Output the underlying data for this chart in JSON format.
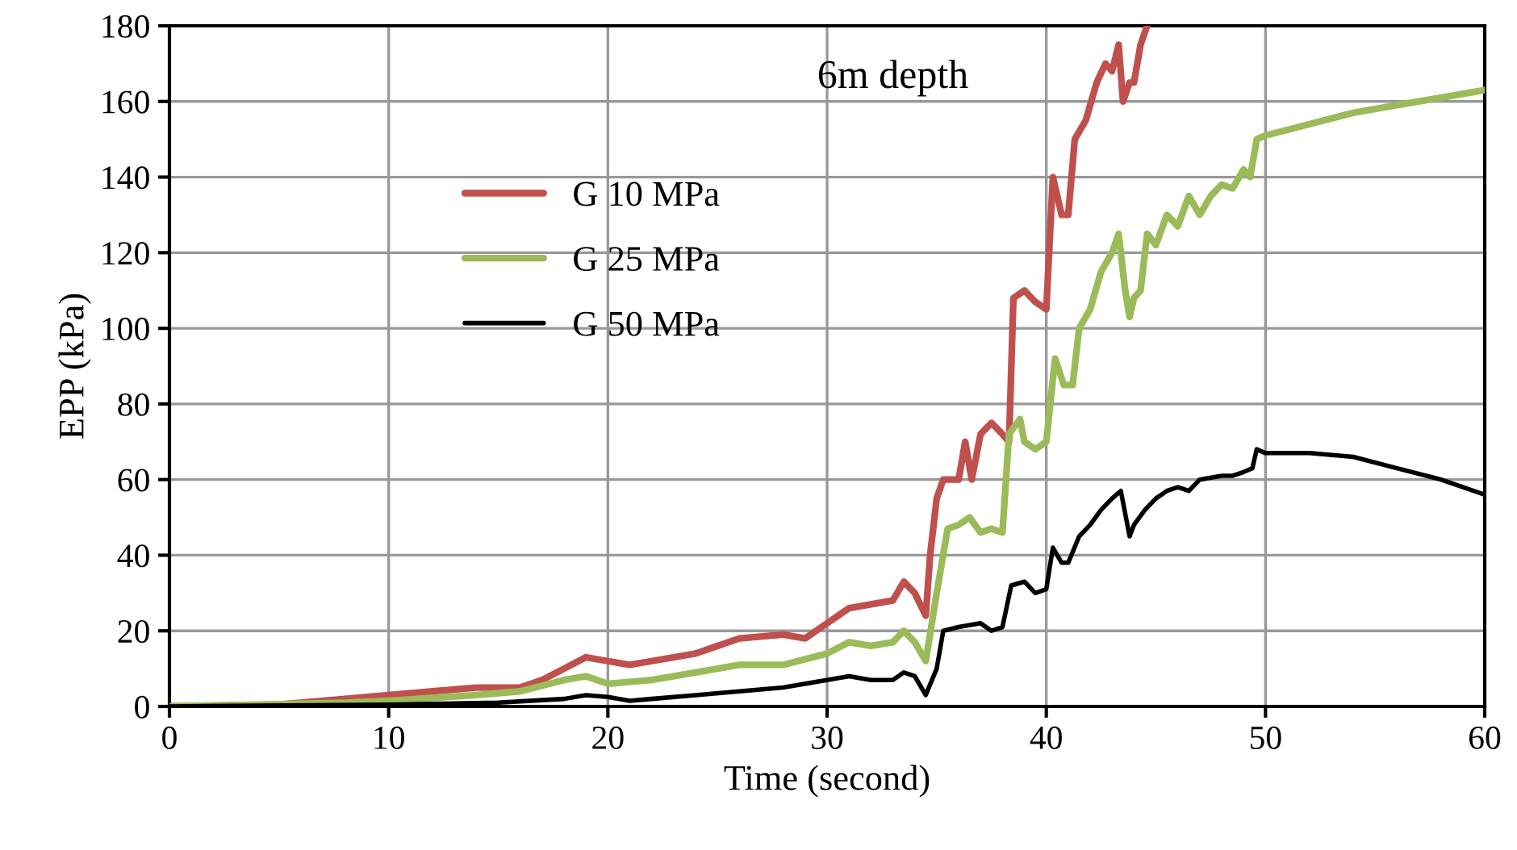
{
  "chart_data": {
    "type": "line",
    "title": "6m depth",
    "xlabel": "Time (second)",
    "ylabel": "EPP (kPa)",
    "xlim": [
      0,
      60
    ],
    "xticks": [
      0,
      10,
      20,
      30,
      40,
      50,
      60
    ],
    "ylim": [
      0,
      180
    ],
    "yticks": [
      0,
      20,
      40,
      60,
      80,
      100,
      120,
      140,
      160,
      180
    ],
    "grid": true,
    "legend": "top left",
    "marker": "none",
    "line_style": "solid",
    "series": [
      {
        "name": "G 10 MPa",
        "color": "#c0504d",
        "x": [
          0,
          5,
          8,
          10,
          12,
          14,
          16,
          17,
          18,
          19,
          20,
          21,
          22,
          24,
          25,
          26,
          28,
          29,
          30,
          31,
          32,
          33,
          33.5,
          34,
          34.5,
          34.7,
          35,
          35.3,
          36,
          36.3,
          36.6,
          37,
          37.5,
          38,
          38.3,
          38.5,
          39,
          39.5,
          40,
          40.3,
          40.7,
          41,
          41.3,
          41.8,
          42.3,
          42.7,
          43,
          43.3,
          43.5,
          43.8,
          44,
          44.3,
          44.6
        ],
        "values": [
          0,
          0.5,
          2,
          3,
          4,
          5,
          5,
          7,
          10,
          13,
          12,
          11,
          12,
          14,
          16,
          18,
          19,
          18,
          22,
          26,
          27,
          28,
          33,
          30,
          24,
          40,
          55,
          60,
          60,
          70,
          60,
          72,
          75,
          72,
          70,
          108,
          110,
          107,
          105,
          140,
          130,
          130,
          150,
          155,
          165,
          170,
          168,
          175,
          160,
          165,
          165,
          175,
          180
        ]
      },
      {
        "name": "G 25 MPa",
        "color": "#9bbb59",
        "x": [
          0,
          8,
          10,
          14,
          16,
          18,
          19,
          20,
          22,
          24,
          26,
          28,
          30,
          31,
          32,
          33,
          33.5,
          34,
          34.5,
          35,
          35.5,
          36,
          36.5,
          37,
          37.5,
          38,
          38.3,
          38.8,
          39,
          39.5,
          40,
          40.4,
          40.8,
          41.2,
          41.5,
          42,
          42.5,
          43,
          43.3,
          43.6,
          43.8,
          44,
          44.3,
          44.6,
          45,
          45.5,
          46,
          46.5,
          47,
          47.5,
          48,
          48.5,
          49,
          49.3,
          49.6,
          50,
          52,
          54,
          56,
          58,
          60
        ],
        "values": [
          0,
          1,
          1.5,
          3,
          4,
          7,
          8,
          6,
          7,
          9,
          11,
          11,
          14,
          17,
          16,
          17,
          20,
          17,
          12,
          30,
          47,
          48,
          50,
          46,
          47,
          46,
          72,
          76,
          70,
          68,
          70,
          92,
          85,
          85,
          100,
          105,
          115,
          120,
          125,
          110,
          103,
          108,
          110,
          125,
          122,
          130,
          127,
          135,
          130,
          135,
          138,
          137,
          142,
          140,
          150,
          151,
          154,
          157,
          159,
          161,
          163
        ]
      },
      {
        "name": "G 50 MPa",
        "color": "#000000",
        "x": [
          0,
          10,
          15,
          18,
          19,
          20,
          21,
          22,
          24,
          26,
          28,
          30,
          31,
          32,
          33,
          33.5,
          34,
          34.5,
          35,
          35.3,
          36,
          37,
          37.5,
          38,
          38.4,
          39,
          39.5,
          40,
          40.3,
          40.7,
          41,
          41.5,
          42,
          42.5,
          43,
          43.4,
          43.8,
          44,
          44.5,
          45,
          45.5,
          46,
          46.5,
          47,
          48,
          48.5,
          49,
          49.4,
          49.6,
          50,
          52,
          54,
          56,
          58,
          60
        ],
        "values": [
          0,
          0.5,
          1,
          2,
          3,
          2.5,
          1.5,
          2,
          3,
          4,
          5,
          7,
          8,
          7,
          7,
          9,
          8,
          3,
          10,
          20,
          21,
          22,
          20,
          21,
          32,
          33,
          30,
          31,
          42,
          38,
          38,
          45,
          48,
          52,
          55,
          57,
          45,
          48,
          52,
          55,
          57,
          58,
          57,
          60,
          61,
          61,
          62,
          63,
          68,
          67,
          67,
          66,
          63,
          60,
          56
        ]
      }
    ]
  }
}
